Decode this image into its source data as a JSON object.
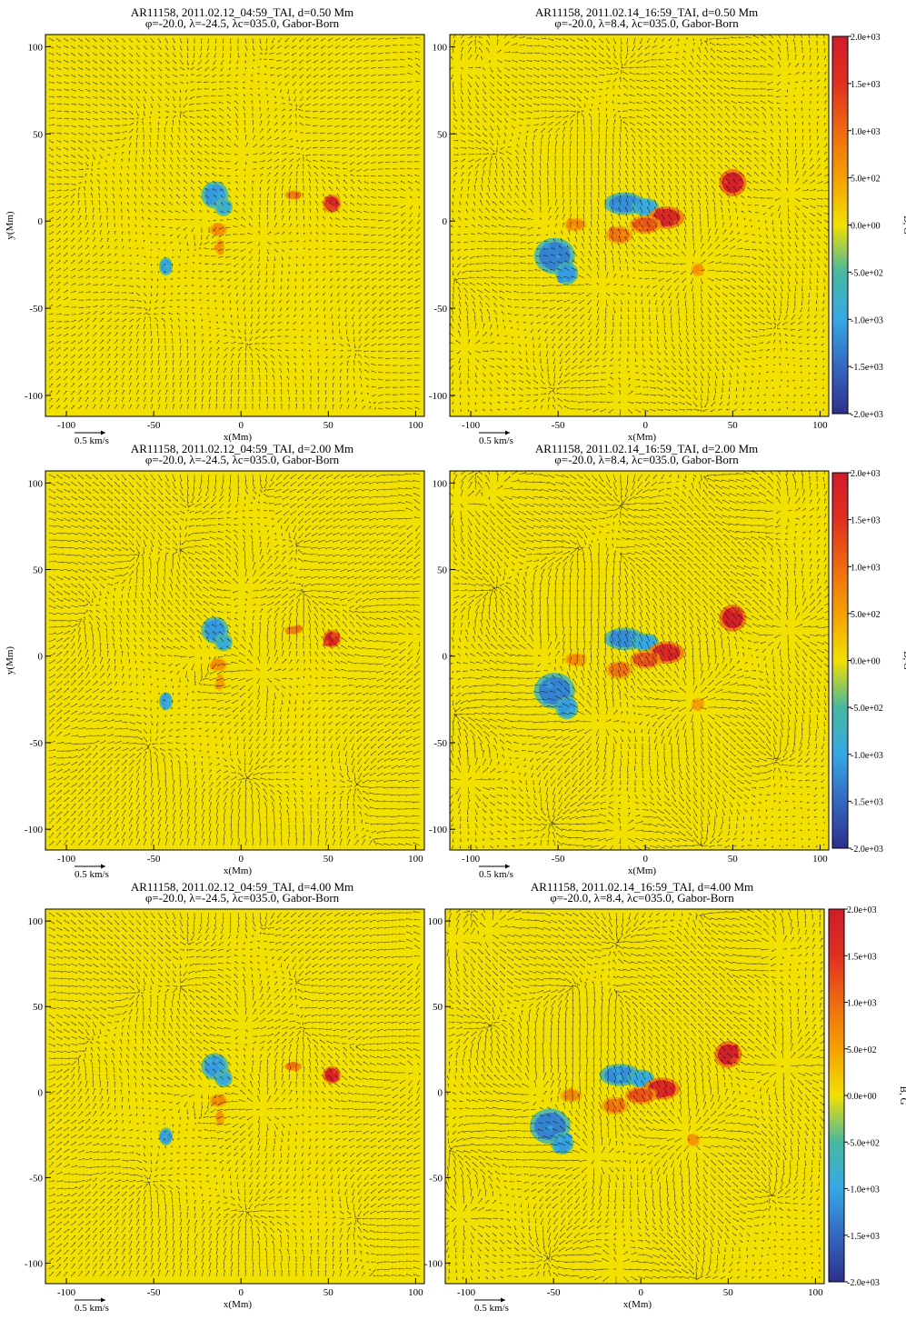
{
  "figure": {
    "colors": {
      "background_field": "#f2e000",
      "arrow": "#111111",
      "positive_strong": "#d42020",
      "positive_mid": "#f07a10",
      "negative_mid": "#4aa8e0",
      "negative_strong": "#3040a0"
    },
    "colorbar": {
      "label": "B, G",
      "ticks": [
        "2.0e+03",
        "1.5e+03",
        "1.0e+03",
        "5.0e+02",
        "0.0e+00",
        "-5.0e+02",
        "-1.0e+03",
        "-1.5e+03",
        "-2.0e+03"
      ],
      "range": [
        -2000,
        2000
      ],
      "stops": [
        {
          "v": -2000,
          "c": "#2e2f8e"
        },
        {
          "v": -1500,
          "c": "#3468c0"
        },
        {
          "v": -1000,
          "c": "#36a8e6"
        },
        {
          "v": -500,
          "c": "#48b8a0"
        },
        {
          "v": 0,
          "c": "#f2e000"
        },
        {
          "v": 500,
          "c": "#f5a000"
        },
        {
          "v": 1000,
          "c": "#ef6a10"
        },
        {
          "v": 1500,
          "c": "#e03020"
        },
        {
          "v": 2000,
          "c": "#d01c2a"
        }
      ]
    },
    "axes": {
      "xlabel": "x(Mm)",
      "ylabel": "y(Mm)",
      "xticks": [
        -100,
        -50,
        0,
        50,
        100
      ],
      "yticks": [
        100,
        50,
        0,
        -50,
        -100
      ],
      "xlim": [
        -112,
        105
      ],
      "ylim": [
        -112,
        107
      ]
    },
    "scale_arrow_label": "0.5 km/s"
  },
  "chart_data": [
    {
      "type": "heatmap",
      "title": "AR11158, 2011.02.12_04:59_TAI, d=0.50 Mm",
      "subtitle": "φ=-20.0, λ=-24.5, λc=035.0, Gabor-Born",
      "xlabel": "x(Mm)",
      "ylabel": "y(Mm)",
      "show_ylabel": true,
      "show_colorbar": false,
      "flow_strength": 0.8,
      "regions": [
        {
          "x": -15,
          "y": 15,
          "rx": 6,
          "ry": 6,
          "B": -1100
        },
        {
          "x": -10,
          "y": 8,
          "rx": 4,
          "ry": 4,
          "B": -900
        },
        {
          "x": -13,
          "y": -5,
          "rx": 4,
          "ry": 3,
          "B": 700
        },
        {
          "x": -12,
          "y": -15,
          "rx": 2,
          "ry": 4,
          "B": 600
        },
        {
          "x": 30,
          "y": 15,
          "rx": 4,
          "ry": 2,
          "B": 900
        },
        {
          "x": 52,
          "y": 10,
          "rx": 4,
          "ry": 4,
          "B": 1800
        },
        {
          "x": -43,
          "y": -26,
          "rx": 3,
          "ry": 4,
          "B": -1100
        }
      ]
    },
    {
      "type": "heatmap",
      "title": "AR11158, 2011.02.14_16:59_TAI, d=0.50 Mm",
      "subtitle": "φ=-20.0, λ=8.4, λc=035.0, Gabor-Born",
      "xlabel": "x(Mm)",
      "ylabel": "y(Mm)",
      "show_ylabel": false,
      "show_colorbar": true,
      "flow_strength": 1.0,
      "regions": [
        {
          "x": -52,
          "y": -20,
          "rx": 9,
          "ry": 8,
          "B": -1300
        },
        {
          "x": -45,
          "y": -30,
          "rx": 5,
          "ry": 5,
          "B": -1100
        },
        {
          "x": -12,
          "y": 10,
          "rx": 9,
          "ry": 5,
          "B": -1200
        },
        {
          "x": 0,
          "y": 8,
          "rx": 6,
          "ry": 4,
          "B": -1000
        },
        {
          "x": 12,
          "y": 2,
          "rx": 8,
          "ry": 5,
          "B": 1700
        },
        {
          "x": 0,
          "y": -2,
          "rx": 7,
          "ry": 4,
          "B": 1200
        },
        {
          "x": -15,
          "y": -8,
          "rx": 6,
          "ry": 4,
          "B": 900
        },
        {
          "x": -40,
          "y": -2,
          "rx": 5,
          "ry": 3,
          "B": 700
        },
        {
          "x": 50,
          "y": 22,
          "rx": 6,
          "ry": 6,
          "B": 1900
        },
        {
          "x": 30,
          "y": -28,
          "rx": 3,
          "ry": 3,
          "B": 600
        }
      ]
    },
    {
      "type": "heatmap",
      "title": "AR11158, 2011.02.12_04:59_TAI, d=2.00 Mm",
      "subtitle": "φ=-20.0, λ=-24.5, λc=035.0, Gabor-Born",
      "xlabel": "x(Mm)",
      "ylabel": "y(Mm)",
      "show_ylabel": true,
      "show_colorbar": false,
      "flow_strength": 1.2,
      "regions": [
        {
          "x": -15,
          "y": 15,
          "rx": 6,
          "ry": 6,
          "B": -1100
        },
        {
          "x": -10,
          "y": 8,
          "rx": 4,
          "ry": 4,
          "B": -900
        },
        {
          "x": -13,
          "y": -5,
          "rx": 4,
          "ry": 3,
          "B": 700
        },
        {
          "x": -12,
          "y": -15,
          "rx": 2,
          "ry": 4,
          "B": 600
        },
        {
          "x": 30,
          "y": 15,
          "rx": 4,
          "ry": 2,
          "B": 900
        },
        {
          "x": 52,
          "y": 10,
          "rx": 4,
          "ry": 4,
          "B": 1800
        },
        {
          "x": -43,
          "y": -26,
          "rx": 3,
          "ry": 4,
          "B": -1100
        }
      ]
    },
    {
      "type": "heatmap",
      "title": "AR11158, 2011.02.14_16:59_TAI, d=2.00 Mm",
      "subtitle": "φ=-20.0, λ=8.4, λc=035.0, Gabor-Born",
      "xlabel": "x(Mm)",
      "ylabel": "y(Mm)",
      "show_ylabel": false,
      "show_colorbar": true,
      "flow_strength": 1.4,
      "regions": [
        {
          "x": -52,
          "y": -20,
          "rx": 9,
          "ry": 8,
          "B": -1300
        },
        {
          "x": -45,
          "y": -30,
          "rx": 5,
          "ry": 5,
          "B": -1100
        },
        {
          "x": -12,
          "y": 10,
          "rx": 9,
          "ry": 5,
          "B": -1200
        },
        {
          "x": 0,
          "y": 8,
          "rx": 6,
          "ry": 4,
          "B": -1000
        },
        {
          "x": 12,
          "y": 2,
          "rx": 8,
          "ry": 5,
          "B": 1700
        },
        {
          "x": 0,
          "y": -2,
          "rx": 7,
          "ry": 4,
          "B": 1200
        },
        {
          "x": -15,
          "y": -8,
          "rx": 6,
          "ry": 4,
          "B": 900
        },
        {
          "x": -40,
          "y": -2,
          "rx": 5,
          "ry": 3,
          "B": 700
        },
        {
          "x": 50,
          "y": 22,
          "rx": 6,
          "ry": 6,
          "B": 1900
        },
        {
          "x": 30,
          "y": -28,
          "rx": 3,
          "ry": 3,
          "B": 600
        }
      ]
    },
    {
      "type": "heatmap",
      "title": "AR11158, 2011.02.12_04:59_TAI, d=4.00 Mm",
      "subtitle": "φ=-20.0, λ=-24.5, λc=035.0, Gabor-Born",
      "xlabel": "x(Mm)",
      "ylabel": "y(Mm)",
      "show_ylabel": false,
      "show_colorbar": false,
      "flow_strength": 1.1,
      "regions": [
        {
          "x": -15,
          "y": 15,
          "rx": 6,
          "ry": 6,
          "B": -1100
        },
        {
          "x": -10,
          "y": 8,
          "rx": 4,
          "ry": 4,
          "B": -900
        },
        {
          "x": -13,
          "y": -5,
          "rx": 4,
          "ry": 3,
          "B": 700
        },
        {
          "x": -12,
          "y": -15,
          "rx": 2,
          "ry": 4,
          "B": 600
        },
        {
          "x": 30,
          "y": 15,
          "rx": 4,
          "ry": 2,
          "B": 900
        },
        {
          "x": 52,
          "y": 10,
          "rx": 4,
          "ry": 4,
          "B": 1800
        },
        {
          "x": -43,
          "y": -26,
          "rx": 3,
          "ry": 4,
          "B": -1100
        }
      ]
    },
    {
      "type": "heatmap",
      "title": "AR11158, 2011.02.14_16:59_TAI, d=4.00 Mm",
      "subtitle": "φ=-20.0, λ=8.4, λc=035.0, Gabor-Born",
      "xlabel": "x(Mm)",
      "ylabel": "y(Mm)",
      "show_ylabel": false,
      "show_colorbar": true,
      "flow_strength": 1.3,
      "regions": [
        {
          "x": -52,
          "y": -20,
          "rx": 9,
          "ry": 8,
          "B": -1300
        },
        {
          "x": -45,
          "y": -30,
          "rx": 5,
          "ry": 5,
          "B": -1100
        },
        {
          "x": -12,
          "y": 10,
          "rx": 9,
          "ry": 5,
          "B": -1200
        },
        {
          "x": 0,
          "y": 8,
          "rx": 6,
          "ry": 4,
          "B": -1000
        },
        {
          "x": 12,
          "y": 2,
          "rx": 8,
          "ry": 5,
          "B": 1700
        },
        {
          "x": 0,
          "y": -2,
          "rx": 7,
          "ry": 4,
          "B": 1200
        },
        {
          "x": -15,
          "y": -8,
          "rx": 6,
          "ry": 4,
          "B": 900
        },
        {
          "x": -40,
          "y": -2,
          "rx": 5,
          "ry": 3,
          "B": 700
        },
        {
          "x": 50,
          "y": 22,
          "rx": 6,
          "ry": 6,
          "B": 1900
        },
        {
          "x": 30,
          "y": -28,
          "rx": 3,
          "ry": 3,
          "B": 600
        }
      ]
    }
  ]
}
